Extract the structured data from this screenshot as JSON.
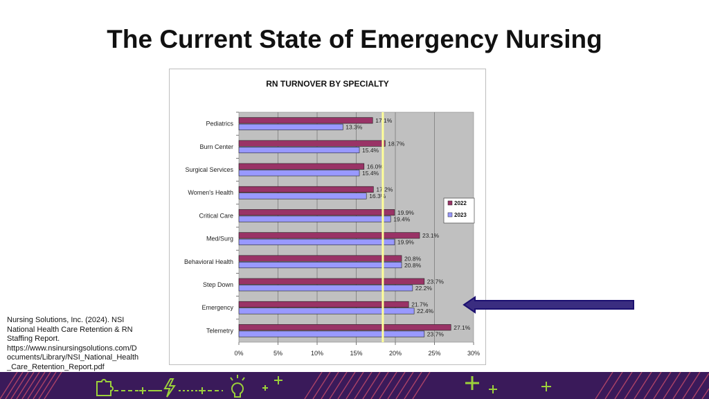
{
  "slide": {
    "title": "The Current State of Emergency Nursing",
    "citation_lines": [
      "Nursing Solutions, Inc. (2024). NSI",
      "National Health Care Retention & RN",
      "Staffing Report.",
      "https://www.nsinursingsolutions.com/D",
      "ocuments/Library/NSI_National_Health",
      "_Care_Retention_Report.pdf"
    ]
  },
  "colors": {
    "series_2022": "#993366",
    "series_2023": "#9999ff",
    "plot_background": "#c0c0c0",
    "highlight_line": "#ffff99",
    "arrow_fill": "#3a2d80",
    "arrow_stroke": "#1c1070",
    "footer_background": "#3a1a5a",
    "footer_accent": "#9cd13a"
  },
  "chart_data": {
    "type": "bar",
    "orientation": "horizontal",
    "title": "RN TURNOVER BY SPECIALTY",
    "categories": [
      "Pediatrics",
      "Burn Center",
      "Surgical Services",
      "Women's Health",
      "Critical Care",
      "Med/Surg",
      "Behavioral Health",
      "Step Down",
      "Emergency",
      "Telemetry"
    ],
    "series": [
      {
        "name": "2022",
        "values": [
          17.1,
          18.7,
          16.0,
          17.2,
          19.9,
          23.1,
          20.8,
          23.7,
          21.7,
          27.1
        ],
        "labels": [
          "17.1%",
          "18.7%",
          "16.0%",
          "17.2%",
          "19.9%",
          "23.1%",
          "20.8%",
          "23.7%",
          "21.7%",
          "27.1%"
        ]
      },
      {
        "name": "2023",
        "values": [
          13.3,
          15.4,
          15.4,
          16.3,
          19.4,
          19.9,
          20.8,
          22.2,
          22.4,
          23.7
        ],
        "labels": [
          "13.3%",
          "15.4%",
          "15.4%",
          "16.3%",
          "19.4%",
          "19.9%",
          "20.8%",
          "22.2%",
          "22.4%",
          "23.7%"
        ]
      }
    ],
    "xlim": [
      0,
      30
    ],
    "x_ticks": [
      "0%",
      "5%",
      "10%",
      "15%",
      "20%",
      "25%",
      "30%"
    ],
    "x_tick_values": [
      0,
      5,
      10,
      15,
      20,
      25,
      30
    ],
    "reference_line_value": 18.4,
    "highlighted_category": "Emergency",
    "grid": true,
    "legend_position": "right"
  }
}
